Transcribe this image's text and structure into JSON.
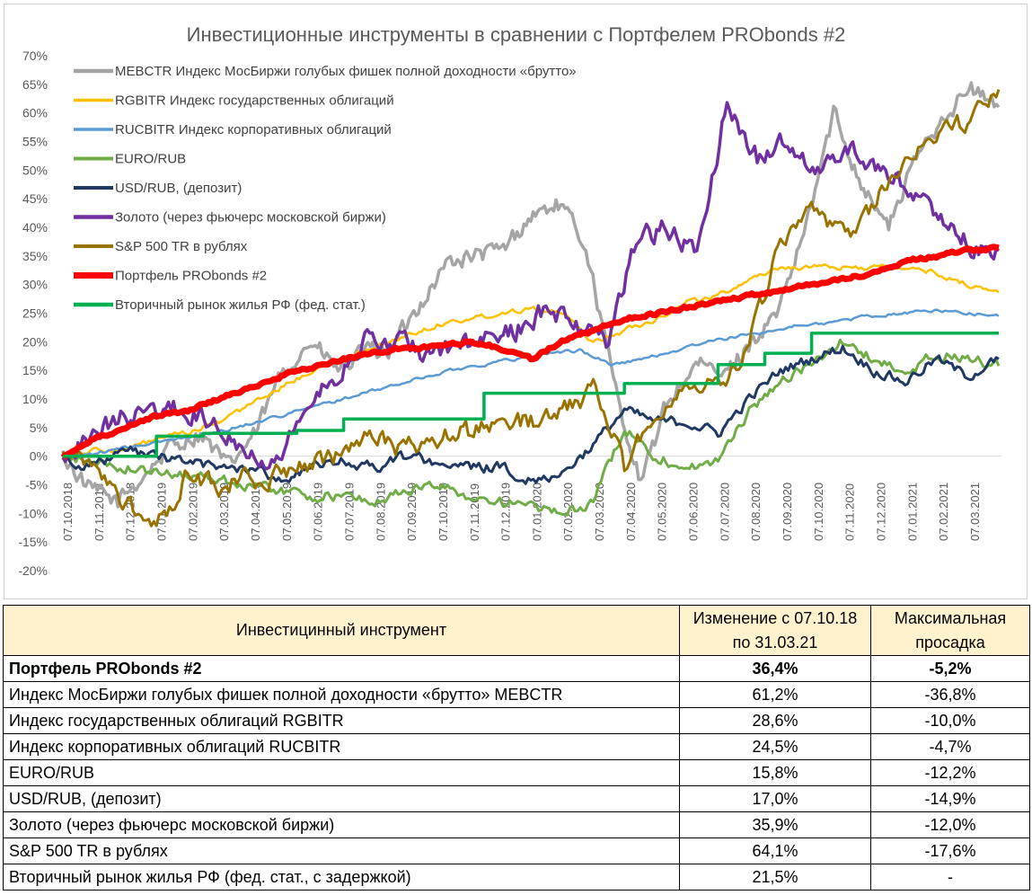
{
  "chart_data": {
    "type": "line",
    "title": "Инвестиционные инструменты в сравнении с Портфелем PRObonds #2",
    "xlabel": "",
    "ylabel": "",
    "ylim": [
      -20,
      70
    ],
    "y_ticks": [
      "70%",
      "65%",
      "60%",
      "55%",
      "50%",
      "45%",
      "40%",
      "35%",
      "30%",
      "25%",
      "20%",
      "15%",
      "10%",
      "5%",
      "0%",
      "-5%",
      "-10%",
      "-15%",
      "-20%"
    ],
    "x_ticks": [
      "07.10.2018",
      "07.11.2018",
      "07.12.2018",
      "07.01.2019",
      "07.02.2019",
      "07.03.2019",
      "07.04.2019",
      "07.05.2019",
      "07.06.2019",
      "07.07.2019",
      "07.08.2019",
      "07.09.2019",
      "07.10.2019",
      "07.11.2019",
      "07.12.2019",
      "07.01.2020",
      "07.02.2020",
      "07.03.2020",
      "07.04.2020",
      "07.05.2020",
      "07.06.2020",
      "07.07.2020",
      "07.08.2020",
      "07.09.2020",
      "07.10.2020",
      "07.11.2020",
      "07.12.2020",
      "07.01.2021",
      "07.02.2021",
      "07.03.2021"
    ],
    "series": [
      {
        "name": "MEBCTR Индекс МосБиржи голубых фишек полной доходности «брутто»",
        "color": "#a5a5a5",
        "width": 3.5,
        "noise": 1.4,
        "step": false,
        "values": [
          0,
          -6,
          -8,
          -3,
          2,
          4,
          -2,
          4,
          15,
          20,
          15,
          18,
          19,
          27,
          34,
          35,
          36,
          42,
          44,
          37,
          13,
          -5,
          10,
          16,
          14,
          20,
          25,
          40,
          60,
          48,
          40,
          52,
          60,
          64,
          61
        ]
      },
      {
        "name": "RGBITR Индекс государственных облигаций",
        "color": "#ffc000",
        "width": 2.5,
        "noise": 0.4,
        "step": false,
        "values": [
          0,
          1,
          1,
          3,
          4,
          6,
          9,
          12,
          15,
          17,
          19,
          21,
          23,
          24,
          25,
          26,
          25,
          20,
          22,
          24,
          27,
          28,
          31,
          33,
          33,
          33,
          33,
          33,
          32,
          30,
          28.6
        ]
      },
      {
        "name": "RUCBITR Индекс корпоративных облигаций",
        "color": "#5b9bd5",
        "width": 2.5,
        "noise": 0.25,
        "step": false,
        "values": [
          0,
          0.5,
          1.5,
          2.5,
          3.5,
          4.5,
          6,
          7.5,
          9,
          10.5,
          12,
          13.5,
          15,
          16,
          17,
          18,
          18.5,
          16,
          17,
          18.5,
          20,
          21,
          22,
          23,
          23.5,
          24.5,
          25,
          25.5,
          25,
          24.5
        ]
      },
      {
        "name": "EURO/RUB",
        "color": "#70ad47",
        "width": 3,
        "noise": 0.8,
        "step": false,
        "values": [
          0,
          -1,
          -2,
          -3,
          -3,
          -4,
          -5,
          -6,
          -7,
          -7,
          -8,
          -6,
          -5,
          -7,
          -8,
          -9,
          -10,
          -8,
          5,
          0,
          -2,
          -1,
          8,
          13,
          16,
          20,
          17,
          14,
          18,
          17,
          15.8
        ]
      },
      {
        "name": "USD/RUB, (депозит)",
        "color": "#203864",
        "width": 3,
        "noise": 0.8,
        "step": false,
        "values": [
          0,
          -2,
          1,
          0,
          -1,
          -2,
          -2,
          -4,
          -2,
          -1,
          -2,
          0,
          -1,
          -2,
          -2,
          -4,
          -3,
          2,
          8,
          6,
          6,
          4,
          10,
          15,
          17,
          19,
          15,
          13,
          17,
          14,
          17
        ]
      },
      {
        "name": "Золото (через фьючерс московской биржи)",
        "color": "#7030a0",
        "width": 3.5,
        "noise": 1.6,
        "step": false,
        "values": [
          0,
          4,
          7,
          8,
          8,
          6,
          2,
          -1,
          8,
          14,
          20,
          20,
          18,
          19,
          20,
          22,
          26,
          23,
          20,
          38,
          40,
          35,
          62,
          52,
          55,
          50,
          54,
          50,
          47,
          42,
          37,
          35.9
        ]
      },
      {
        "name": "S&P 500 TR в рублях",
        "color": "#997300",
        "width": 3,
        "noise": 1.6,
        "step": false,
        "values": [
          0,
          -2,
          -8,
          -13,
          -3,
          -5,
          -4,
          -3,
          -2,
          1,
          3,
          1,
          3,
          4,
          6,
          6,
          7,
          12,
          -2,
          8,
          12,
          13,
          19,
          38,
          42,
          38,
          44,
          52,
          57,
          58,
          64.1
        ]
      },
      {
        "name": "Портфель PRObonds #2",
        "color": "#ff0000",
        "width": 7,
        "noise": 0.25,
        "step": false,
        "values": [
          0,
          3,
          5,
          7,
          8,
          10,
          12,
          14,
          15.5,
          17,
          18,
          19,
          19,
          20,
          19,
          17,
          20,
          22,
          24,
          25,
          26,
          27,
          28,
          29,
          30,
          31,
          32,
          34,
          35,
          36,
          36.4
        ]
      },
      {
        "name": "Вторичный рынок жилья РФ (фед. стат.)",
        "color": "#00b050",
        "width": 3.5,
        "noise": 0,
        "step": true,
        "values": [
          0,
          0,
          3.5,
          4,
          4,
          4.5,
          6.5,
          6.5,
          6.5,
          11,
          11,
          11,
          12.7,
          12.7,
          16,
          18,
          21.5,
          21.5,
          21.5,
          21.5,
          21.5
        ]
      }
    ]
  },
  "table": {
    "headers": {
      "instrument": "Инвестицинный инструмент",
      "change_line1": "Изменение с 07.10.18",
      "change_line2": "по 31.03.21",
      "drawdown_line1": "Максимальная",
      "drawdown_line2": "просадка"
    },
    "rows": [
      {
        "name": "Портфель PRObonds #2",
        "change": "36,4%",
        "drawdown": "-5,2%",
        "bold": true
      },
      {
        "name": "Индекс МосБиржи голубых фишек полной доходности «брутто» MEBCTR",
        "change": "61,2%",
        "drawdown": "-36,8%",
        "bold": false
      },
      {
        "name": "Индекс государственных облигаций RGBITR",
        "change": "28,6%",
        "drawdown": "-10,0%",
        "bold": false
      },
      {
        "name": "Индекс корпоративных облигаций RUCBITR",
        "change": "24,5%",
        "drawdown": "-4,7%",
        "bold": false
      },
      {
        "name": "EURO/RUB",
        "change": "15,8%",
        "drawdown": "-12,2%",
        "bold": false
      },
      {
        "name": "USD/RUB, (депозит)",
        "change": "17,0%",
        "drawdown": "-14,9%",
        "bold": false
      },
      {
        "name": "Золото (через фьючерс московской биржи)",
        "change": "35,9%",
        "drawdown": "-12,0%",
        "bold": false
      },
      {
        "name": "S&P 500 TR в рублях",
        "change": "64,1%",
        "drawdown": "-17,6%",
        "bold": false
      },
      {
        "name": "Вторичный рынок жилья РФ (фед. стат., с задержкой)",
        "change": "21,5%",
        "drawdown": "-",
        "bold": false
      }
    ]
  }
}
